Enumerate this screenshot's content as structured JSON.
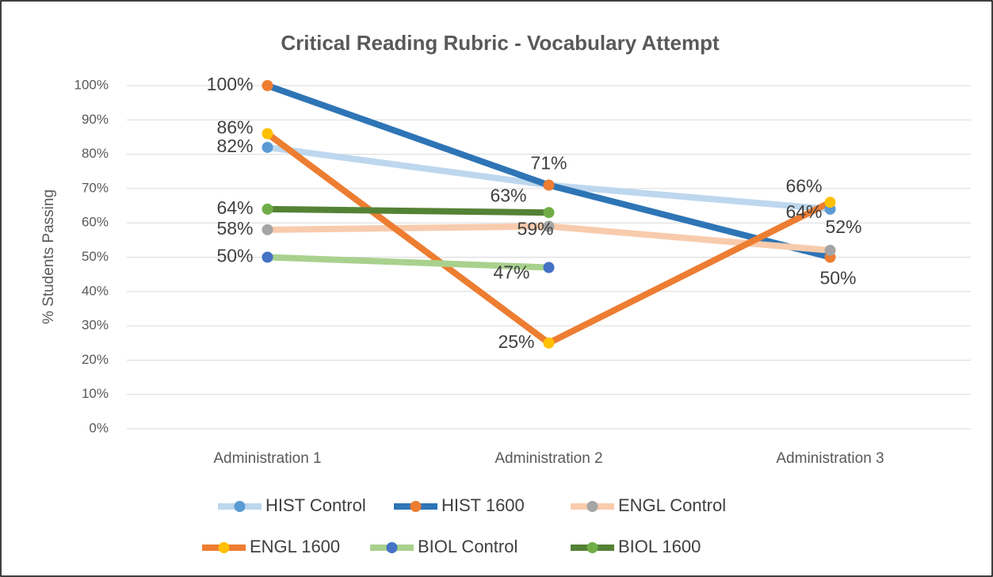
{
  "chart_data": {
    "type": "line",
    "title": "Critical Reading Rubric - Vocabulary Attempt",
    "y_label": "% Students Passing",
    "categories": [
      "Administration 1",
      "Administration 2",
      "Administration 3"
    ],
    "ylim": [
      0,
      100
    ],
    "yticks": [
      {
        "value": 0,
        "label": "0%"
      },
      {
        "value": 10,
        "label": "10%"
      },
      {
        "value": 20,
        "label": "20%"
      },
      {
        "value": 30,
        "label": "30%"
      },
      {
        "value": 40,
        "label": "40%"
      },
      {
        "value": 50,
        "label": "50%"
      },
      {
        "value": 60,
        "label": "60%"
      },
      {
        "value": 70,
        "label": "70%"
      },
      {
        "value": 80,
        "label": "80%"
      },
      {
        "value": 90,
        "label": "90%"
      },
      {
        "value": 100,
        "label": "100%"
      }
    ],
    "grid": true,
    "legend": "bottom",
    "series": [
      {
        "name": "HIST Control",
        "color": "#bdd7ee",
        "marker_color": "#5b9bd5",
        "values": [
          82,
          71,
          64
        ],
        "value_labels": [
          "82%",
          null,
          "64%"
        ]
      },
      {
        "name": "HIST 1600",
        "color": "#2e75b6",
        "marker_color": "#ed7d31",
        "values": [
          100,
          71,
          50
        ],
        "value_labels": [
          "100%",
          "71%",
          "50%"
        ]
      },
      {
        "name": "ENGL Control",
        "color": "#f8cbad",
        "marker_color": "#a5a5a5",
        "values": [
          58,
          59,
          52
        ],
        "value_labels": [
          "58%",
          "59%",
          "52%"
        ]
      },
      {
        "name": "ENGL 1600",
        "color": "#ed7d31",
        "marker_color": "#ffc000",
        "values": [
          86,
          25,
          66
        ],
        "value_labels": [
          "86%",
          "25%",
          "66%"
        ]
      },
      {
        "name": "BIOL Control",
        "color": "#a9d18e",
        "marker_color": "#4472c4",
        "values": [
          50,
          47,
          null
        ],
        "value_labels": [
          "50%",
          "47%",
          null
        ]
      },
      {
        "name": "BIOL 1600",
        "color": "#548235",
        "marker_color": "#70ad47",
        "values": [
          64,
          63,
          null
        ],
        "value_labels": [
          "64%",
          "63%",
          null
        ]
      }
    ]
  }
}
